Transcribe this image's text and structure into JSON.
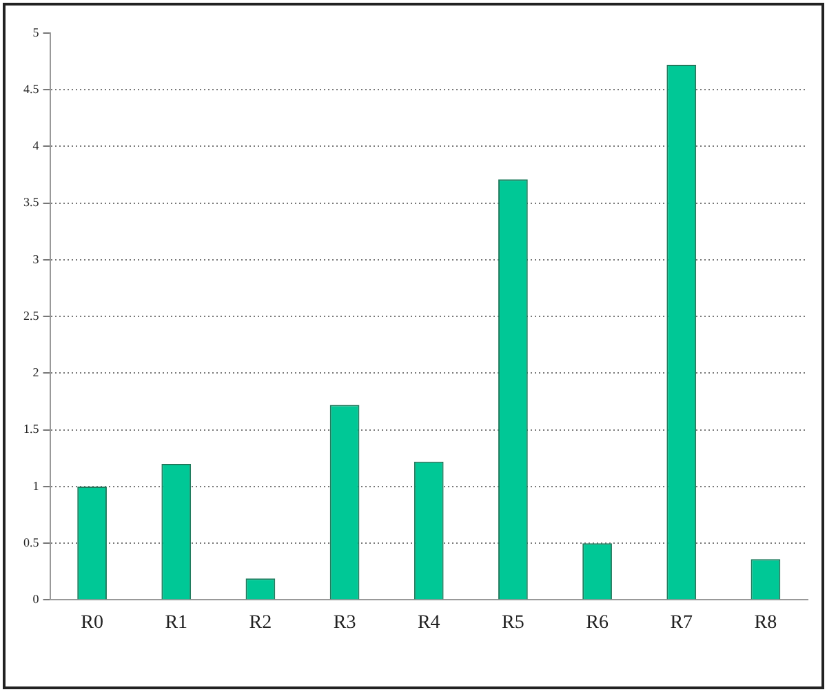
{
  "chart_data": {
    "type": "bar",
    "categories": [
      "R0",
      "R1",
      "R2",
      "R3",
      "R4",
      "R5",
      "R6",
      "R7",
      "R8"
    ],
    "values": [
      1.0,
      1.2,
      0.19,
      1.72,
      1.22,
      3.71,
      0.5,
      4.72,
      0.36
    ],
    "color": "#00c896",
    "ylim": [
      0,
      5
    ],
    "yticks": [
      0,
      0.5,
      1,
      1.5,
      2,
      2.5,
      3,
      3.5,
      4,
      4.5,
      5
    ],
    "grid": "y",
    "legend": false
  }
}
